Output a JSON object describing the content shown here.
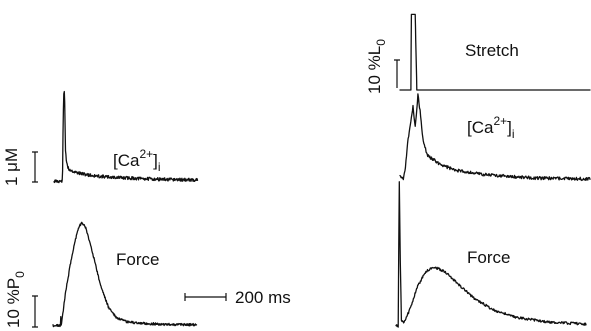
{
  "chart_data": [
    {
      "type": "line",
      "panel": "left",
      "series": [
        {
          "name": "[Ca2+]i",
          "points": [
            [
              0,
              0.02
            ],
            [
              40,
              0.02
            ],
            [
              42,
              0.3
            ],
            [
              45,
              1.6
            ],
            [
              49,
              2.4
            ],
            [
              52,
              2.0
            ],
            [
              56,
              0.8
            ],
            [
              62,
              0.45
            ],
            [
              72,
              0.32
            ],
            [
              100,
              0.25
            ],
            [
              140,
              0.2
            ],
            [
              200,
              0.15
            ],
            [
              280,
              0.12
            ],
            [
              400,
              0.09
            ],
            [
              560,
              0.06
            ],
            [
              700,
              0.05
            ]
          ]
        },
        {
          "name": "Force",
          "points": [
            [
              0,
              0.02
            ],
            [
              36,
              0.02
            ],
            [
              38,
              0.5
            ],
            [
              40,
              0.1
            ],
            [
              44,
              0.3
            ],
            [
              60,
              1.6
            ],
            [
              90,
              3.4
            ],
            [
              120,
              4.8
            ],
            [
              140,
              5.2
            ],
            [
              160,
              4.9
            ],
            [
              190,
              3.8
            ],
            [
              230,
              2.1
            ],
            [
              270,
              0.95
            ],
            [
              310,
              0.4
            ],
            [
              360,
              0.2
            ],
            [
              450,
              0.12
            ],
            [
              550,
              0.08
            ],
            [
              700,
              0.06
            ]
          ]
        }
      ]
    },
    {
      "type": "line",
      "panel": "right",
      "series": [
        {
          "name": "Stretch",
          "points": [
            [
              0,
              0
            ],
            [
              20,
              0
            ],
            [
              21,
              13.5
            ],
            [
              28,
              13.5
            ],
            [
              31,
              0
            ],
            [
              350,
              0
            ]
          ]
        },
        {
          "name": "[Ca2+]i",
          "points": [
            [
              0,
              0.2
            ],
            [
              6,
              0.12
            ],
            [
              10,
              0.4
            ],
            [
              14,
              1.0
            ],
            [
              18,
              1.4
            ],
            [
              24,
              1.9
            ],
            [
              28,
              1.4
            ],
            [
              33,
              2.2
            ],
            [
              37,
              1.8
            ],
            [
              42,
              1.1
            ],
            [
              50,
              0.7
            ],
            [
              70,
              0.5
            ],
            [
              100,
              0.32
            ],
            [
              150,
              0.22
            ],
            [
              200,
              0.16
            ],
            [
              260,
              0.12
            ],
            [
              350,
              0.1
            ]
          ]
        },
        {
          "name": "Force",
          "points": [
            [
              0,
              0
            ],
            [
              4,
              0
            ],
            [
              6,
              9
            ],
            [
              8,
              4
            ],
            [
              10,
              0.3
            ],
            [
              15,
              0.2
            ],
            [
              25,
              1.0
            ],
            [
              40,
              2.5
            ],
            [
              55,
              3.4
            ],
            [
              70,
              3.7
            ],
            [
              90,
              3.4
            ],
            [
              115,
              2.6
            ],
            [
              145,
              1.7
            ],
            [
              180,
              1.0
            ],
            [
              220,
              0.55
            ],
            [
              280,
              0.25
            ],
            [
              350,
              0.12
            ]
          ]
        }
      ]
    }
  ],
  "labels": {
    "ca_left": "[Ca",
    "ca_sup": "2+",
    "ca_close": "]",
    "ca_sub": "i",
    "force_left": "Force",
    "force_right": "Force",
    "stretch": "Stretch",
    "scale_ca": "1 μM",
    "scale_force_main": "10 %P",
    "scale_force_sub": "0",
    "scale_stretch_main": "10 %L",
    "scale_stretch_sub": "0",
    "scale_time": "200 ms"
  }
}
